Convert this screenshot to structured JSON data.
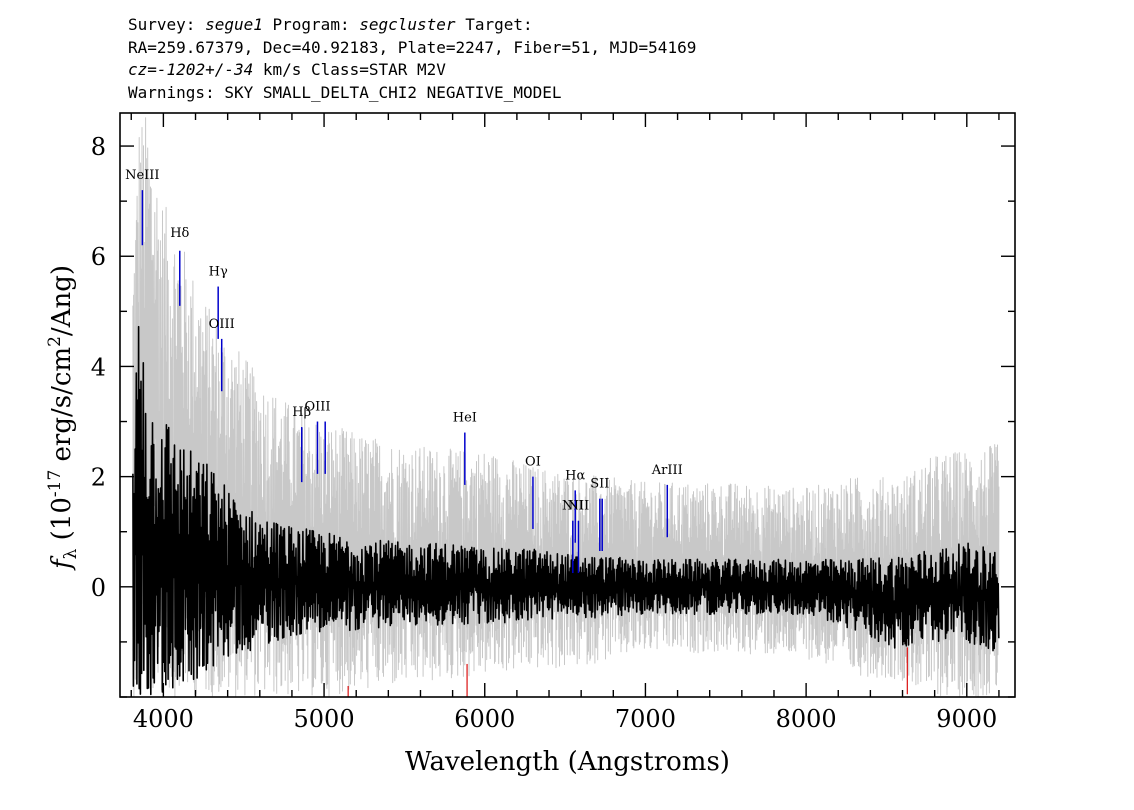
{
  "header": {
    "survey_label": "Survey:",
    "survey": "segue1",
    "program_label": "Program:",
    "program": "segcluster",
    "target_label": "Target:",
    "coords": "RA=259.67379, Dec=40.92183, Plate=2247, Fiber=51, MJD=54169",
    "cz_prefix": "cz=",
    "cz": "-1202+/-34",
    "cz_suffix": " km/s Class=STAR M2V",
    "warnings": "Warnings: SKY SMALL_DELTA_CHI2 NEGATIVE_MODEL"
  },
  "chart_data": {
    "type": "line",
    "xlabel": "Wavelength (Angstroms)",
    "ylabel_parts": {
      "f": "f",
      "sub": "λ",
      "open": " (10",
      "exp1": "-17",
      "mid": " erg/s/cm",
      "exp2": "2",
      "close": "/Ang)"
    },
    "xlim": [
      3730,
      9300
    ],
    "ylim": [
      -2.0,
      8.6
    ],
    "x_ticks": [
      4000,
      5000,
      6000,
      7000,
      8000,
      9000
    ],
    "y_ticks": [
      0,
      2,
      4,
      6,
      8
    ],
    "x_minor_step": 200,
    "y_minor_step": 1,
    "colors": {
      "flux": "#000000",
      "error": "#c8c8c8",
      "emission_lines": "#0000cc",
      "sky_lines": "#dd2222"
    },
    "series": [
      {
        "style": "error-envelope",
        "x": [
          3810,
          3850,
          3900,
          4000,
          4100,
          4200,
          4300,
          4400,
          4500,
          4600,
          4800,
          5000,
          5200,
          5500,
          5800,
          6000,
          6300,
          6500,
          7000,
          7500,
          8000,
          8300,
          8600,
          8800,
          9000,
          9200
        ],
        "upper": [
          6.0,
          8.6,
          8.6,
          7.0,
          6.4,
          5.6,
          5.0,
          4.6,
          4.2,
          3.8,
          3.3,
          3.0,
          2.8,
          2.6,
          2.5,
          2.5,
          2.2,
          2.1,
          1.9,
          1.9,
          1.8,
          2.0,
          2.0,
          2.4,
          2.5,
          2.6
        ],
        "lower": [
          -2.0,
          -2.0,
          -2.0,
          -2.0,
          -2.0,
          -2.0,
          -2.0,
          -2.0,
          -2.0,
          -2.0,
          -2.0,
          -2.0,
          -1.9,
          -1.8,
          -1.7,
          -1.6,
          -1.5,
          -1.5,
          -1.2,
          -1.2,
          -1.3,
          -1.6,
          -1.7,
          -2.0,
          -2.0,
          -2.0
        ]
      },
      {
        "style": "flux",
        "x": [
          3810,
          3850,
          3900,
          4000,
          4100,
          4200,
          4300,
          4400,
          4500,
          4600,
          4800,
          5000,
          5200,
          5500,
          5800,
          6000,
          6300,
          6500,
          7000,
          7500,
          8000,
          8300,
          8600,
          8800,
          9000,
          9200
        ],
        "upper": [
          2.2,
          5.8,
          3.4,
          3.2,
          2.7,
          2.4,
          2.2,
          1.8,
          1.5,
          1.3,
          1.1,
          1.0,
          0.9,
          0.8,
          0.8,
          0.7,
          0.7,
          0.6,
          0.5,
          0.5,
          0.5,
          0.5,
          0.6,
          0.7,
          0.8,
          0.7
        ],
        "lower": [
          -2.0,
          -2.0,
          -2.0,
          -2.0,
          -1.9,
          -1.7,
          -1.5,
          -1.3,
          -1.2,
          -1.1,
          -0.9,
          -0.8,
          -0.8,
          -0.7,
          -0.7,
          -0.7,
          -0.6,
          -0.6,
          -0.5,
          -0.5,
          -0.5,
          -0.8,
          -1.2,
          -1.0,
          -1.0,
          -1.2
        ]
      }
    ],
    "emission_lines": [
      {
        "label": "NeIII",
        "x": 3869,
        "y_top": 7.2,
        "y_bottom": 6.2,
        "label_y": 7.4
      },
      {
        "label": "Hδ",
        "x": 4102,
        "y_top": 6.1,
        "y_bottom": 5.1,
        "label_y": 6.35
      },
      {
        "label": "Hγ",
        "x": 4341,
        "y_top": 5.45,
        "y_bottom": 4.5,
        "label_y": 5.65
      },
      {
        "label": "OIII",
        "x": 4363,
        "y_top": 4.5,
        "y_bottom": 3.55,
        "label_y": 4.7
      },
      {
        "label": "Hβ",
        "x": 4861,
        "y_top": 2.9,
        "y_bottom": 1.9,
        "label_y": 3.1
      },
      {
        "label": "OIII",
        "x": 4959,
        "y_top": 3.0,
        "y_bottom": 2.05,
        "label_y": 3.2
      },
      {
        "label": "",
        "x": 5007,
        "y_top": 3.0,
        "y_bottom": 2.05,
        "label_y": 3.2
      },
      {
        "label": "HeI",
        "x": 5876,
        "y_top": 2.8,
        "y_bottom": 1.85,
        "label_y": 3.0
      },
      {
        "label": "OI",
        "x": 6300,
        "y_top": 2.0,
        "y_bottom": 1.05,
        "label_y": 2.2
      },
      {
        "label": "NII",
        "x": 6548,
        "y_top": 1.2,
        "y_bottom": 0.25,
        "label_y": 1.4
      },
      {
        "label": "Hα",
        "x": 6563,
        "y_top": 1.75,
        "y_bottom": 0.8,
        "label_y": 1.95
      },
      {
        "label": "NII",
        "x": 6583,
        "y_top": 1.2,
        "y_bottom": 0.25,
        "label_y": 1.4
      },
      {
        "label": "SII",
        "x": 6716,
        "y_top": 1.6,
        "y_bottom": 0.65,
        "label_y": 1.8
      },
      {
        "label": "",
        "x": 6731,
        "y_top": 1.6,
        "y_bottom": 0.65,
        "label_y": 1.8
      },
      {
        "label": "ArIII",
        "x": 7136,
        "y_top": 1.85,
        "y_bottom": 0.9,
        "label_y": 2.05
      }
    ],
    "sky_lines": [
      {
        "x": 5150,
        "y_top": -1.8,
        "y_bottom": -2.0
      },
      {
        "x": 5890,
        "y_top": -1.4,
        "y_bottom": -2.0
      },
      {
        "x": 8630,
        "y_top": -1.1,
        "y_bottom": -1.95
      }
    ]
  }
}
